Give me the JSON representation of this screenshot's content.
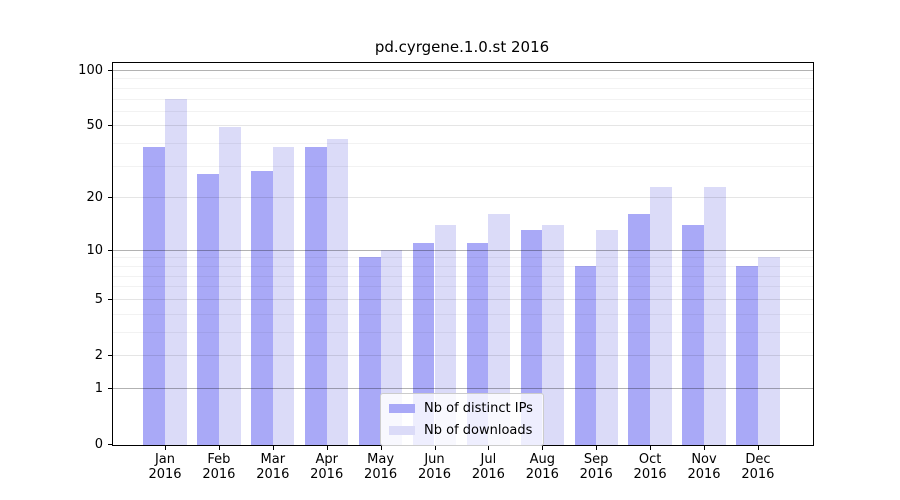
{
  "title": "pd.cyrgene.1.0.st 2016",
  "legend": {
    "position": "lower center",
    "items": [
      {
        "label": "Nb of distinct IPs",
        "color": "#a9a9f7"
      },
      {
        "label": "Nb of downloads",
        "color": "#dbdbf8"
      }
    ]
  },
  "colors": {
    "distinct_ips_bar": "#a9a9f7",
    "downloads_bar": "#dbdbf8",
    "axis": "#000000",
    "background": "#ffffff"
  },
  "chart_data": {
    "type": "bar",
    "title": "pd.cyrgene.1.0.st 2016",
    "xlabel": "",
    "ylabel": "",
    "categories": [
      "Jan 2016",
      "Feb 2016",
      "Mar 2016",
      "Apr 2016",
      "May 2016",
      "Jun 2016",
      "Jul 2016",
      "Aug 2016",
      "Sep 2016",
      "Oct 2016",
      "Nov 2016",
      "Dec 2016"
    ],
    "series": [
      {
        "name": "Nb of distinct IPs",
        "key": "distinct-ips",
        "color": "#a9a9f7",
        "values": [
          38,
          27,
          28,
          38,
          9,
          11,
          11,
          13,
          8,
          16,
          14,
          8
        ]
      },
      {
        "name": "Nb of downloads",
        "key": "downloads",
        "color": "#dbdbf8",
        "values": [
          70,
          49,
          38,
          42,
          10,
          14,
          16,
          14,
          13,
          23,
          23,
          9
        ]
      }
    ],
    "y_scale": "log10(1+y)",
    "y_ticks": [
      100,
      50,
      20,
      10,
      5,
      2,
      1,
      0
    ],
    "y_decade_ticks": [
      100,
      10,
      1
    ],
    "y_minor_ticks": [
      90,
      80,
      70,
      60,
      40,
      30,
      9,
      8,
      7,
      6,
      4,
      3
    ],
    "ylim": [
      0,
      110
    ],
    "grid": true,
    "legend_position": "lower center"
  }
}
